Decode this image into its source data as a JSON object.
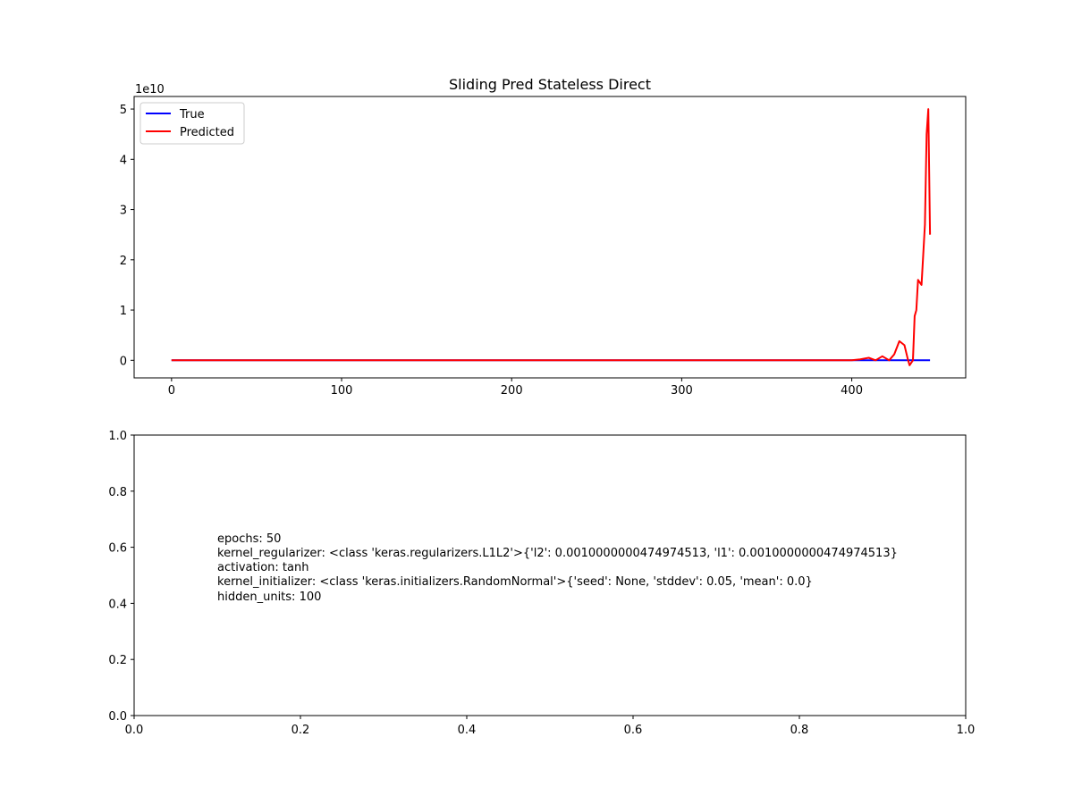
{
  "chart_data": [
    {
      "type": "line",
      "title": "Sliding Pred Stateless Direct",
      "xlabel": "",
      "ylabel": "",
      "y_offset_label": "1e10",
      "xlim": [
        -22,
        467
      ],
      "ylim": [
        -3.5,
        52.5
      ],
      "y_units": "1e10",
      "xticks": [
        0,
        100,
        200,
        300,
        400
      ],
      "yticks": [
        0,
        1,
        2,
        3,
        4,
        5
      ],
      "legend": {
        "placement": "top-left",
        "entries": [
          "True",
          "Predicted"
        ]
      },
      "grid": false,
      "series": [
        {
          "name": "True",
          "color": "#0000ff",
          "x": [
            0,
            100,
            200,
            300,
            400,
            446
          ],
          "y": [
            0,
            0,
            0,
            0,
            0,
            0
          ]
        },
        {
          "name": "Predicted",
          "color": "#ff0000",
          "x": [
            0,
            100,
            200,
            300,
            400,
            405,
            410,
            414,
            418,
            422,
            425,
            428,
            431,
            433,
            434,
            436,
            437,
            438,
            439,
            441,
            443,
            444,
            445,
            446
          ],
          "y": [
            0,
            0,
            0,
            0,
            0,
            0.02,
            0.05,
            0.0,
            0.08,
            0.0,
            0.12,
            0.38,
            0.3,
            0.02,
            -0.1,
            0.0,
            0.88,
            1.0,
            1.6,
            1.5,
            2.7,
            4.5,
            5.0,
            2.5
          ]
        }
      ]
    },
    {
      "type": "table",
      "title": "",
      "xlim": [
        0,
        1
      ],
      "ylim": [
        0,
        1
      ],
      "xticks": [
        "0.0",
        "0.2",
        "0.4",
        "0.6",
        "0.8",
        "1.0"
      ],
      "yticks": [
        "0.0",
        "0.2",
        "0.4",
        "0.6",
        "0.8",
        "1.0"
      ],
      "grid": false,
      "annotation_lines": [
        "epochs: 50",
        "kernel_regularizer: <class 'keras.regularizers.L1L2'>{'l2': 0.0010000000474974513, 'l1': 0.0010000000474974513}",
        "activation: tanh",
        "kernel_initializer: <class 'keras.initializers.RandomNormal'>{'seed': None, 'stddev': 0.05, 'mean': 0.0}",
        "hidden_units: 100"
      ]
    }
  ]
}
